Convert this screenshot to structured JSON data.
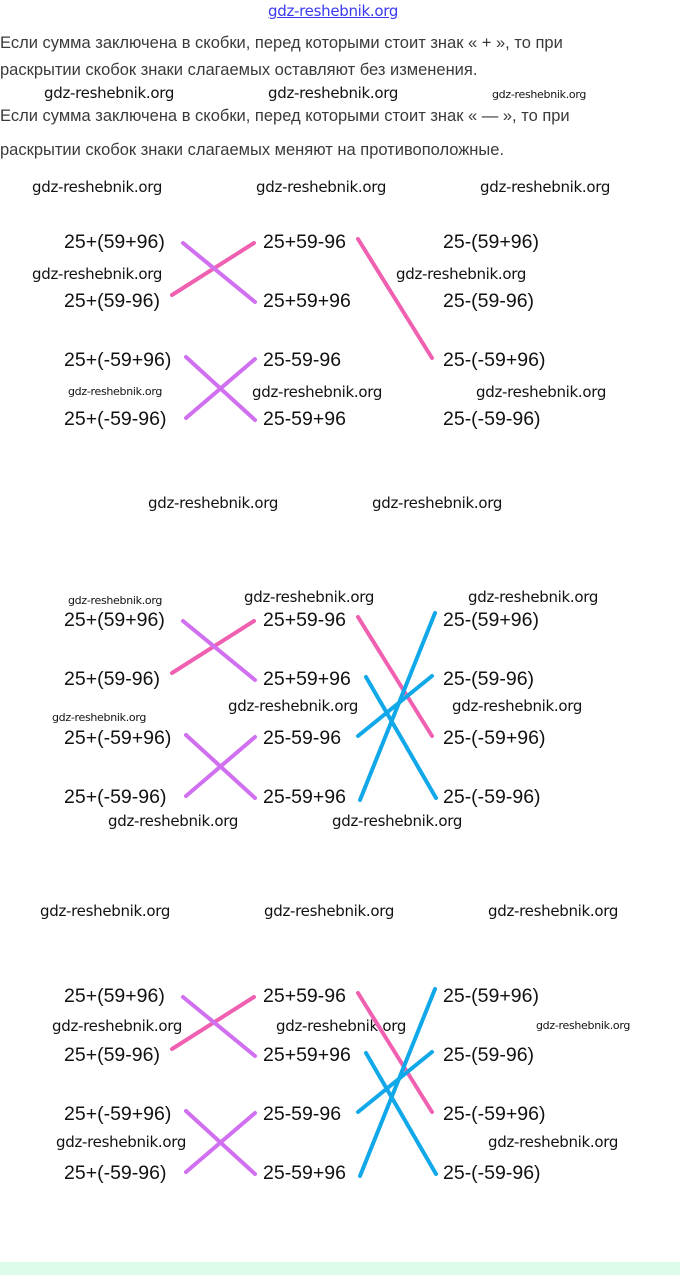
{
  "watermark": "gdz-reshebnik.org",
  "rules": [
    "Если сумма заключена в скобки, перед которыми стоит знак « + », то при",
    "раскрытии скобок знаки слагаемых оставляют без изменения.",
    "Если сумма заключена в скобки, перед которыми стоит знак « — », то при",
    "раскрытии скобок знаки слагаемых меняют на противоположные."
  ],
  "columns": {
    "left": [
      "25+(59+96)",
      "25+(59-96)",
      "25+(-59+96)",
      "25+(-59-96)"
    ],
    "middle": [
      "25+59-96",
      "25+59+96",
      "25-59-96",
      "25-59+96"
    ],
    "right": [
      "25-(59+96)",
      "25-(59-96)",
      "25-(-59+96)",
      "25-(-59-96)"
    ]
  },
  "colors": {
    "pink": "#f060b0",
    "purple": "#d070f0",
    "blue": "#10a8e8",
    "footer": "#ddfbe9"
  }
}
